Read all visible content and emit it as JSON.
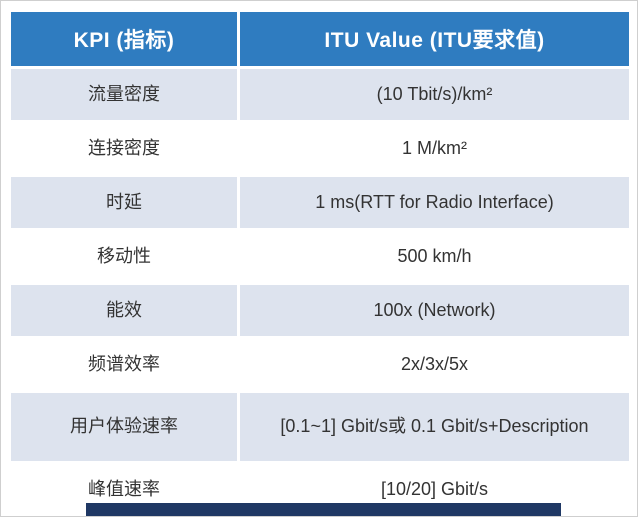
{
  "chart_data": {
    "type": "table",
    "title": "",
    "columns": [
      "KPI (指标)",
      "ITU Value (ITU要求值)"
    ],
    "rows": [
      [
        "流量密度",
        "(10 Tbit/s)/km²"
      ],
      [
        "连接密度",
        "1 M/km²"
      ],
      [
        "时延",
        "1 ms(RTT  for Radio Interface)"
      ],
      [
        "移动性",
        "500 km/h"
      ],
      [
        "能效",
        "100x (Network)"
      ],
      [
        "频谱效率",
        "2x/3x/5x"
      ],
      [
        "用户体验速率",
        "[0.1~1] Gbit/s或 0.1 Gbit/s+Description"
      ],
      [
        "峰值速率",
        "[10/20] Gbit/s"
      ]
    ],
    "colors": {
      "header_bg": "#2f7cc0",
      "header_text": "#ffffff",
      "row_odd_bg": "#dde3ee",
      "row_even_bg": "#ffffff",
      "body_text": "#333333",
      "bottom_bar": "#1f3864"
    }
  }
}
